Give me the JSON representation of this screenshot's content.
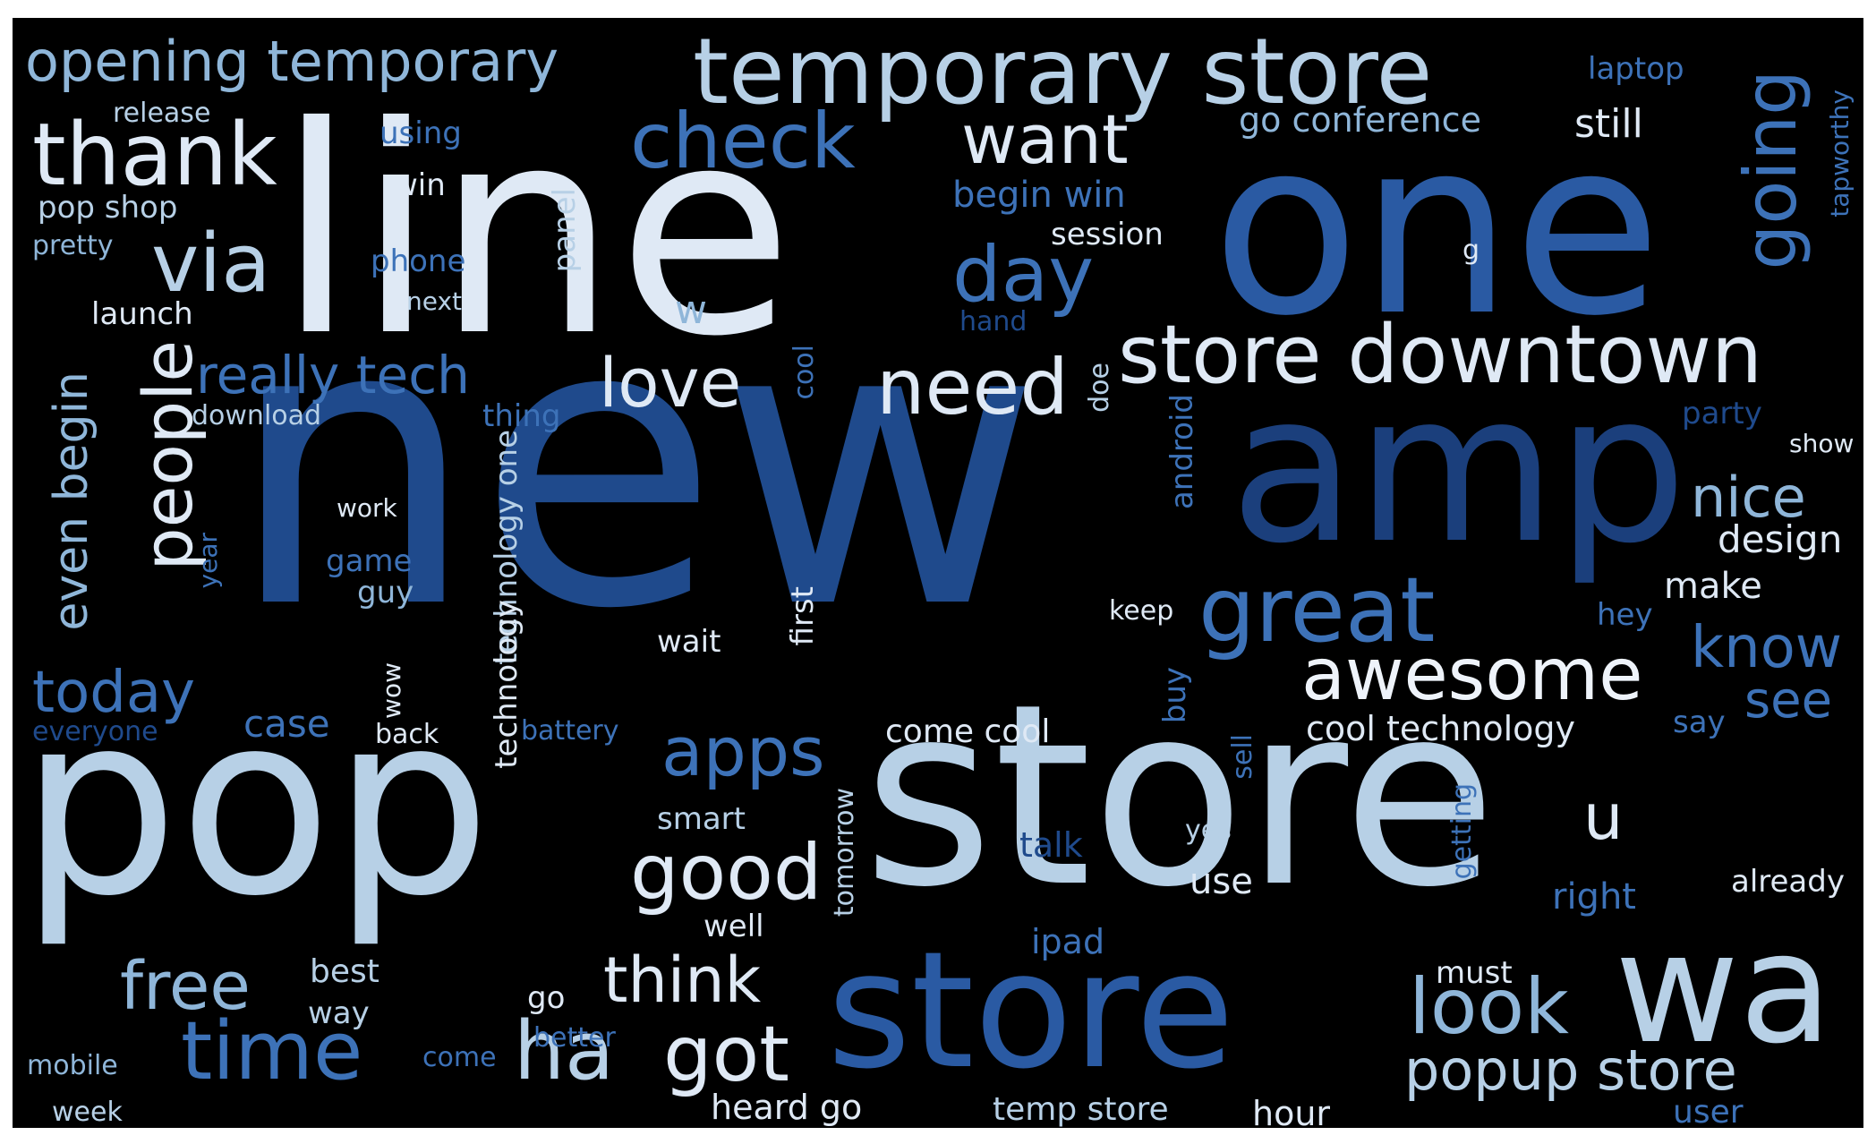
{
  "palette": {
    "background": "#000000",
    "white": "#e6eef8",
    "light_blue": "#b7d0e6",
    "mid_blue": "#8fb6d9",
    "blue": "#3d72b8",
    "dark_blue": "#1f4a8c",
    "navy": "#173a73"
  },
  "words": {
    "new": "new",
    "pop": "pop",
    "store_big": "store",
    "line": "line",
    "one": "one",
    "amp": "amp",
    "store_mid": "store",
    "wa": "wa",
    "temporary_store": "temporary store",
    "store_downtown": "store downtown",
    "opening_temporary": "opening temporary",
    "thank": "thank",
    "check": "check",
    "via": "via",
    "want": "want",
    "day": "day",
    "going": "going",
    "great": "great",
    "awesome": "awesome",
    "need": "need",
    "love": "love",
    "people": "people",
    "today": "today",
    "even_begin": "even begin",
    "apps": "apps",
    "good": "good",
    "time": "time",
    "ha": "ha",
    "got": "got",
    "think": "think",
    "free": "free",
    "look": "look",
    "popup_store": "popup store",
    "know": "know",
    "see": "see",
    "nice": "nice",
    "really_tech": "really tech",
    "u": "u",
    "design": "design",
    "make": "make",
    "cool_technology": "cool technology",
    "come_cool": "come cool",
    "temp_store": "temp store",
    "heard_go": "heard go",
    "hour": "hour",
    "user": "user",
    "right": "right",
    "already": "already",
    "go_conference": "go conference",
    "still": "still",
    "laptop": "laptop",
    "release": "release",
    "using": "using",
    "win": "win",
    "pop_shop": "pop shop",
    "pretty": "pretty",
    "phone": "phone",
    "next": "next",
    "launch": "launch",
    "download": "download",
    "thing": "thing",
    "w": "w",
    "begin_win": "begin win",
    "session": "session",
    "hand": "hand",
    "party": "party",
    "show": "show",
    "hey": "hey",
    "say": "say",
    "work": "work",
    "game": "game",
    "guy": "guy",
    "wait": "wait",
    "case": "case",
    "everyone": "everyone",
    "back": "back",
    "battery": "battery",
    "smart": "smart",
    "talk": "talk",
    "yes": "yes",
    "use": "use",
    "well": "well",
    "best": "best",
    "way": "way",
    "go": "go",
    "must": "must",
    "ipad": "ipad",
    "better": "better",
    "come": "come",
    "mobile": "mobile",
    "week": "week",
    "keep": "keep",
    "g": "g",
    "panel": "panel",
    "cool": "cool",
    "doe": "doe",
    "android": "android",
    "technology_one": "technology one",
    "year": "year",
    "wow": "wow",
    "technology": "technology",
    "first": "first",
    "tomorrow": "tomorrow",
    "buy": "buy",
    "sell": "sell",
    "getting": "getting",
    "tapworthy": "tapworthy"
  }
}
